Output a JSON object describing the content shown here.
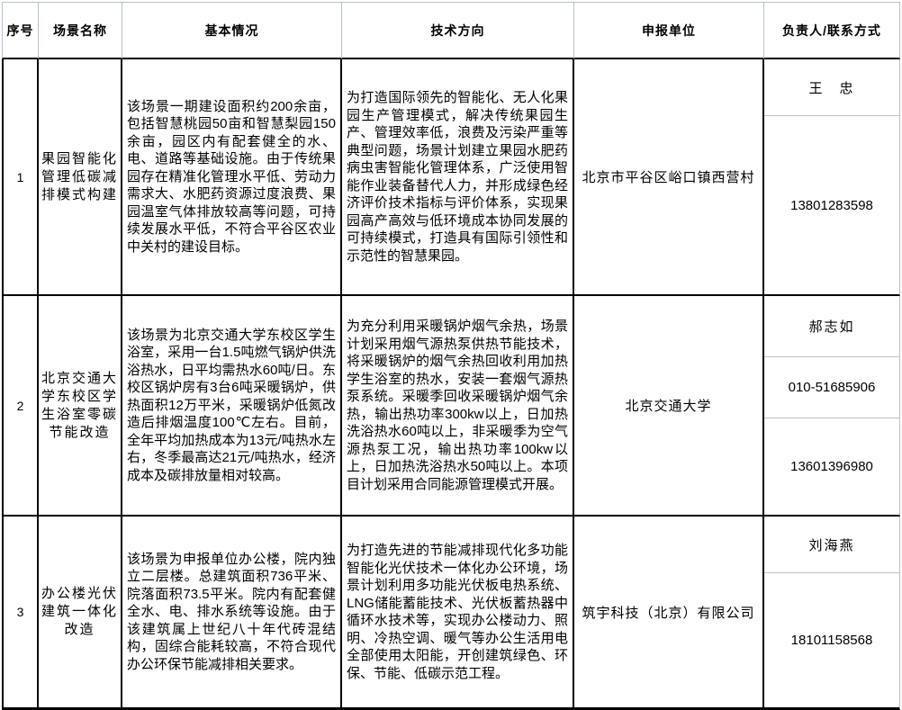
{
  "colors": {
    "grid_black": "#000000",
    "grid_light": "#b9c1ca",
    "background": "#ffffff",
    "text": "#000000"
  },
  "table": {
    "columns": [
      "序号",
      "场景名称",
      "基本情况",
      "技术方向",
      "申报单位",
      "负责人/联系方式"
    ],
    "rows": [
      {
        "index": "1",
        "scene_name": "果园智能化管理低碳减排模式构建",
        "basic_info": "该场景一期建设面积约200余亩，包括智慧桃园50亩和智慧梨园150余亩，园区内有配套健全的水、电、道路等基础设施。由于传统果园存在精准化管理水平低、劳动力需求大、水肥药资源过度浪费、果园温室气体排放较高等问题，可持续发展水平低，不符合平谷区农业中关村的建设目标。",
        "tech_direction": "为打造国际领先的智能化、无人化果园生产管理模式，解决传统果园生产、管理效率低，浪费及污染严重等典型问题，场景计划建立果园水肥药病虫害智能化管理体系，广泛使用智能作业装备替代人力，并形成绿色经济评价技术指标与评价体系，实现果园高产高效与低环境成本协同发展的可持续模式，打造具有国际引领性和示范性的智慧果园。",
        "org": "北京市平谷区峪口镇西营村",
        "contacts": [
          "王　忠",
          "13801283598"
        ]
      },
      {
        "index": "2",
        "scene_name": "北京交通大学东校区学生浴室零碳节能改造",
        "basic_info": "该场景为北京交通大学东校区学生浴室，采用一台1.5吨燃气锅炉供洗浴热水，日平均需热水60吨/日。东校区锅炉房有3台6吨采暖锅炉，供热面积12万平米，采暖锅炉低氮改造后排烟温度100℃左右。目前，全年平均加热成本为13元/吨热水左右，冬季最高达21元/吨热水，经济成本及碳排放量相对较高。",
        "tech_direction": "为充分利用采暖锅炉烟气余热，场景计划采用烟气源热泵供热节能技术，将采暖锅炉的烟气余热回收利用加热学生浴室的热水，安装一套烟气源热泵系统。采暖季回收采暖锅炉烟气余热，输出热功率300kw以上，日加热洗浴热水60吨以上，非采暖季为空气源热泵工况，输出热功率100kw以上，日加热洗浴热水50吨以上。本项目计划采用合同能源管理模式开展。",
        "org": "北京交通大学",
        "contacts": [
          "郝志如",
          "010-51685906",
          "13601396980"
        ]
      },
      {
        "index": "3",
        "scene_name": "办公楼光伏建筑一体化改造",
        "basic_info": "该场景为申报单位办公楼，院内独立二层楼。总建筑面积736平米、院落面积73.5平米。院内有配套健全水、电、排水系统等设施。由于该建筑属上世纪八十年代砖混结构，固综合能耗较高，不符合现代办公环保节能减排相关要求。",
        "tech_direction": "为打造先进的节能减排现代化多功能智能化光伏技术一体化办公环境，场景计划利用多功能光伏板电热系统、LNG储能蓄能技术、光伏板蓄热器中循环水技术等，实现办公楼动力、照明、冷热空调、暖气等办公生活用电全部使用太阳能，开创建筑绿色、环保、节能、低碳示范工程。",
        "org": "筑宇科技（北京）有限公司",
        "contacts": [
          "刘海燕",
          "18101158568"
        ]
      }
    ]
  }
}
